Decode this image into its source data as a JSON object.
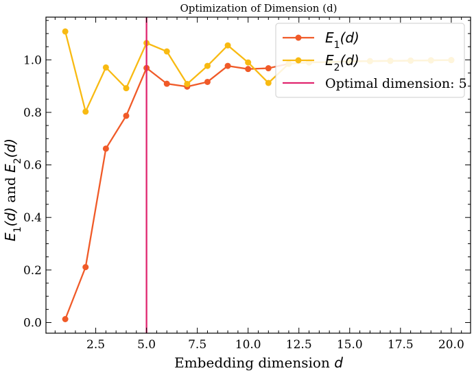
{
  "chart_data": {
    "type": "line",
    "title": "Optimization of Dimension (d)",
    "xlabel_text": "Embedding dimension ",
    "xlabel_var": "d",
    "ylabel_parts": {
      "e": "E",
      "sub1": "1",
      "sub2": "2",
      "arg": "(d)",
      "conj": " and "
    },
    "xlim": [
      0.05,
      20.95
    ],
    "ylim": [
      -0.0405,
      1.1625
    ],
    "x_ticks": [
      2.5,
      5.0,
      7.5,
      10.0,
      12.5,
      15.0,
      17.5,
      20.0
    ],
    "x_tick_labels": [
      "2.5",
      "5.0",
      "7.5",
      "10.0",
      "12.5",
      "15.0",
      "17.5",
      "20.0"
    ],
    "y_ticks": [
      0.0,
      0.2,
      0.4,
      0.6,
      0.8,
      1.0
    ],
    "y_tick_labels": [
      "0.0",
      "0.2",
      "0.4",
      "0.6",
      "0.8",
      "1.0"
    ],
    "x": [
      1,
      2,
      3,
      4,
      5,
      6,
      7,
      8,
      9,
      10,
      11,
      12,
      13,
      14,
      15,
      16,
      17,
      18,
      19,
      20
    ],
    "series": [
      {
        "name": "E1(d)",
        "legend_main": "E",
        "legend_sub": "1",
        "legend_arg": "(d)",
        "color": "#f05a28",
        "values": [
          0.013,
          0.211,
          0.662,
          0.787,
          0.969,
          0.909,
          0.898,
          0.916,
          0.977,
          0.965,
          0.968,
          0.985,
          0.99,
          0.992,
          0.994,
          0.995,
          0.996,
          0.997,
          0.998,
          0.999
        ]
      },
      {
        "name": "E2(d)",
        "legend_main": "E",
        "legend_sub": "2",
        "legend_arg": "(d)",
        "color": "#f8ba12",
        "values": [
          1.108,
          0.803,
          0.971,
          0.892,
          1.064,
          1.032,
          0.908,
          0.977,
          1.055,
          0.99,
          0.912,
          0.985,
          0.99,
          0.992,
          0.994,
          0.995,
          0.996,
          0.997,
          0.998,
          0.999
        ]
      }
    ],
    "vline": {
      "x": 5,
      "label": "Optimal dimension: 5",
      "color": "#e0246e"
    },
    "legend_position": "top-right",
    "grid": false
  }
}
